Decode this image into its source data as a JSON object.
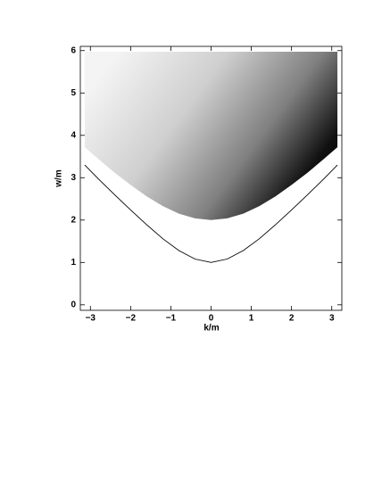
{
  "chart_data": {
    "type": "line",
    "xlabel": "k/m",
    "ylabel": "w/m",
    "x": [
      -3.14,
      -2.8,
      -2.4,
      -2,
      -1.6,
      -1.2,
      -0.8,
      -0.4,
      0,
      0.4,
      0.8,
      1.2,
      1.6,
      2,
      2.4,
      2.8,
      3.14
    ],
    "series": [
      {
        "kind": "area",
        "color": "#000000",
        "values": [
          3.72,
          3.44,
          3.12,
          2.83,
          2.56,
          2.33,
          2.15,
          2.04,
          2,
          2.04,
          2.15,
          2.33,
          2.56,
          2.83,
          3.12,
          3.44,
          3.72
        ]
      },
      {
        "kind": "line",
        "color": "#000000",
        "values": [
          3.3,
          2.97,
          2.6,
          2.24,
          1.89,
          1.56,
          1.28,
          1.08,
          1,
          1.08,
          1.28,
          1.56,
          1.89,
          2.24,
          2.6,
          2.97,
          3.3
        ]
      }
    ],
    "xlim": [
      -3.25,
      3.25
    ],
    "ylim": [
      -0.13,
      6.1
    ],
    "xticks": [
      {
        "value": -3,
        "label": "−3"
      },
      {
        "value": -2,
        "label": "−2"
      },
      {
        "value": -1,
        "label": "−1"
      },
      0,
      1,
      2,
      3
    ],
    "yticks": [
      0,
      1,
      2,
      3,
      4,
      5,
      6
    ]
  }
}
